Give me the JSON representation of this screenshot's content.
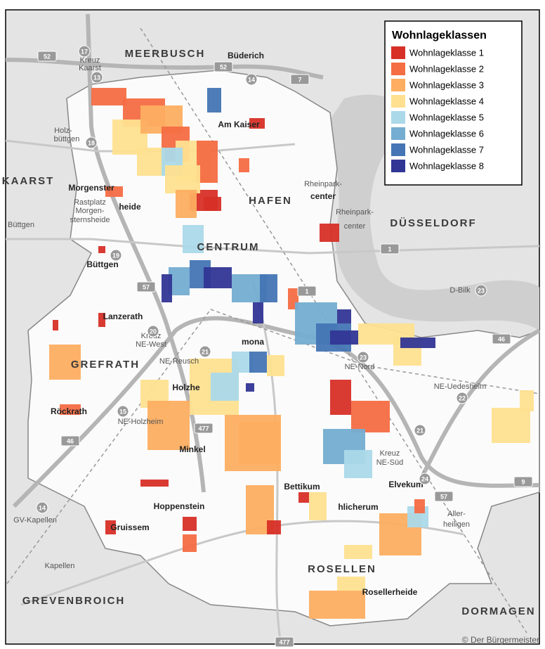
{
  "legend": {
    "title": "Wohnlageklassen",
    "items": [
      {
        "label": "Wohnlageklasse 1",
        "color": "#d73027"
      },
      {
        "label": "Wohnlageklasse 2",
        "color": "#f46d43"
      },
      {
        "label": "Wohnlageklasse 3",
        "color": "#fdae61"
      },
      {
        "label": "Wohnlageklasse 4",
        "color": "#fee090"
      },
      {
        "label": "Wohnlageklasse 5",
        "color": "#abd9e9"
      },
      {
        "label": "Wohnlageklasse 6",
        "color": "#74add1"
      },
      {
        "label": "Wohnlageklasse 7",
        "color": "#4575b4"
      },
      {
        "label": "Wohnlageklasse 8",
        "color": "#313695"
      }
    ]
  },
  "regions": [
    "MEERBUSCH",
    "KAARST",
    "HAFEN",
    "CENTRUM",
    "DÜSSELDORF",
    "GREFRATH",
    "GREVENBROICH",
    "DORMAGEN",
    "ROSELLEN"
  ],
  "places": [
    "Büderich",
    "Kreuz",
    "Kaarst",
    "Holz-",
    "büttgen",
    "Am Kaiser",
    "Morgenster",
    "heide",
    "Rastplatz",
    "Morgen-",
    "sternsheide",
    "Büttgen",
    "Büttgen",
    "Rheinpark-",
    "center",
    "Rheinpark-",
    "center",
    "Lanzerath",
    "Kreuz",
    "NE-West",
    "NE-Reusch",
    "Holzhe",
    "mona",
    "NE-Nord",
    "NE-Uedesheim",
    "Röckrath",
    "NE-Holzheim",
    "Minkel",
    "Bettikum",
    "hlicherum",
    "Hoppenstein",
    "Gruissem",
    "GV-Kapellen",
    "Kapellen",
    "Elvekum",
    "Aller-",
    "heiligen",
    "Kreuz",
    "NE-Süd",
    "Rosellerheide",
    "D-Bilk"
  ],
  "road_shields": [
    "52",
    "52",
    "7",
    "57",
    "1",
    "1",
    "46",
    "46",
    "477",
    "477",
    "57",
    "9",
    "17",
    "13",
    "14",
    "18",
    "19",
    "20",
    "21",
    "15",
    "23",
    "23",
    "22",
    "21",
    "24",
    "14"
  ],
  "copyright": "© Der Bürgermeister"
}
